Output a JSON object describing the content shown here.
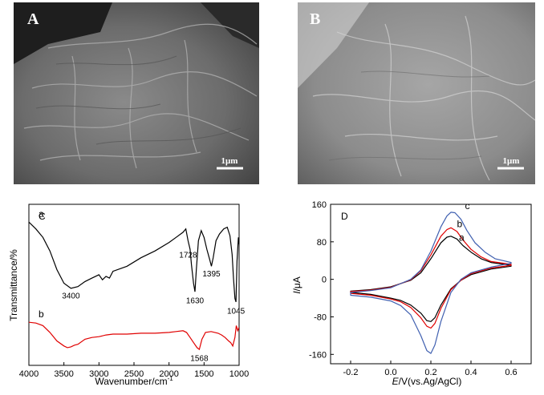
{
  "panels": {
    "A": {
      "label": "A",
      "scale_bar": "1μm"
    },
    "B": {
      "label": "B",
      "scale_bar": "1μm"
    }
  },
  "chart_data": [
    {
      "panel": "C",
      "type": "line",
      "xlabel": "Wavenumber/cm",
      "xlabel_sup": "-1",
      "ylabel": "Transmittance/%",
      "xlim": [
        4000,
        1000
      ],
      "x_ticks": [
        4000,
        3500,
        3000,
        2500,
        2000,
        1500,
        1000
      ],
      "series": [
        {
          "name": "a",
          "color": "#000000",
          "x": [
            4000,
            3900,
            3800,
            3700,
            3600,
            3500,
            3400,
            3300,
            3200,
            3100,
            3000,
            2950,
            2900,
            2850,
            2800,
            2600,
            2400,
            2200,
            2000,
            1900,
            1800,
            1760,
            1728,
            1700,
            1680,
            1650,
            1630,
            1610,
            1580,
            1540,
            1500,
            1460,
            1420,
            1395,
            1370,
            1330,
            1280,
            1220,
            1170,
            1130,
            1100,
            1080,
            1060,
            1045,
            1030,
            1010,
            1000
          ],
          "y": [
            83,
            79,
            74,
            66,
            55,
            47,
            44,
            45,
            48,
            50,
            52,
            49,
            51,
            50,
            54,
            57,
            62,
            66,
            71,
            74,
            77,
            79,
            72,
            67,
            58,
            47,
            42,
            55,
            72,
            78,
            74,
            67,
            61,
            57,
            62,
            72,
            76,
            79,
            80,
            75,
            64,
            50,
            38,
            36,
            60,
            74,
            70
          ]
        },
        {
          "name": "b",
          "color": "#e00000",
          "x": [
            4000,
            3900,
            3800,
            3700,
            3600,
            3500,
            3450,
            3400,
            3350,
            3300,
            3200,
            3100,
            3000,
            2900,
            2800,
            2600,
            2400,
            2200,
            2000,
            1900,
            1800,
            1750,
            1700,
            1650,
            1600,
            1568,
            1530,
            1480,
            1400,
            1300,
            1250,
            1200,
            1150,
            1120,
            1090,
            1060,
            1040,
            1020,
            1000
          ],
          "y": [
            24,
            23.5,
            22,
            18,
            13,
            10,
            9,
            9.5,
            10.5,
            11,
            14,
            15,
            15.5,
            16.5,
            17,
            17,
            17.5,
            17.5,
            18,
            18.5,
            19,
            18,
            15,
            12,
            9,
            8,
            14,
            18,
            18.5,
            17.5,
            16.5,
            15,
            13,
            12,
            10,
            15,
            22,
            19,
            21
          ]
        }
      ],
      "annotations": [
        {
          "text": "3400",
          "x": 3400,
          "y": 40
        },
        {
          "text": "1728",
          "x": 1728,
          "y": 64
        },
        {
          "text": "1395",
          "x": 1395,
          "y": 53
        },
        {
          "text": "1630",
          "x": 1630,
          "y": 37
        },
        {
          "text": "1045",
          "x": 1045,
          "y": 31
        },
        {
          "text": "1568",
          "x": 1568,
          "y": 3
        }
      ],
      "labels": {
        "panel": "C"
      }
    },
    {
      "panel": "D",
      "type": "line",
      "xlabel_italic": "E",
      "xlabel": "/V(vs.Ag/AgCl)",
      "ylabel_italic": "I",
      "ylabel": "/μA",
      "xlim": [
        -0.3,
        0.7
      ],
      "ylim": [
        -180,
        160
      ],
      "x_ticks": [
        -0.2,
        0.0,
        0.2,
        0.4,
        0.6
      ],
      "x_tick_labels": [
        "-0.2",
        "0.0",
        "0.2",
        "0.4",
        "0.6"
      ],
      "y_ticks": [
        160,
        80,
        0,
        -80,
        -160
      ],
      "y_tick_labels": [
        "160",
        "80",
        "0",
        "-80",
        "-160"
      ],
      "series": [
        {
          "name": "a",
          "color": "#000000",
          "x": [
            -0.2,
            -0.1,
            0.0,
            0.1,
            0.15,
            0.2,
            0.25,
            0.28,
            0.3,
            0.33,
            0.36,
            0.4,
            0.45,
            0.5,
            0.6,
            0.6,
            0.5,
            0.4,
            0.35,
            0.3,
            0.25,
            0.22,
            0.2,
            0.18,
            0.15,
            0.1,
            0.05,
            0.0,
            -0.1,
            -0.2
          ],
          "y": [
            -25,
            -22,
            -16,
            -2,
            14,
            44,
            78,
            90,
            92,
            86,
            72,
            58,
            44,
            36,
            30,
            28,
            22,
            10,
            -2,
            -20,
            -55,
            -82,
            -90,
            -88,
            -72,
            -55,
            -45,
            -40,
            -32,
            -28
          ]
        },
        {
          "name": "b",
          "color": "#e00000",
          "x": [
            -0.2,
            -0.1,
            0.0,
            0.1,
            0.15,
            0.2,
            0.25,
            0.28,
            0.3,
            0.33,
            0.36,
            0.4,
            0.45,
            0.5,
            0.6,
            0.6,
            0.5,
            0.4,
            0.35,
            0.3,
            0.25,
            0.22,
            0.2,
            0.18,
            0.15,
            0.1,
            0.05,
            0.0,
            -0.1,
            -0.2
          ],
          "y": [
            -26,
            -23,
            -17,
            -1,
            18,
            52,
            92,
            106,
            110,
            102,
            84,
            64,
            48,
            38,
            32,
            30,
            24,
            12,
            -2,
            -22,
            -62,
            -94,
            -104,
            -100,
            -82,
            -60,
            -48,
            -42,
            -34,
            -30
          ]
        },
        {
          "name": "c",
          "color": "#4060b0",
          "x": [
            -0.2,
            -0.1,
            0.0,
            0.1,
            0.15,
            0.2,
            0.25,
            0.28,
            0.3,
            0.32,
            0.35,
            0.38,
            0.42,
            0.47,
            0.52,
            0.6,
            0.6,
            0.5,
            0.45,
            0.4,
            0.35,
            0.3,
            0.25,
            0.22,
            0.2,
            0.18,
            0.15,
            0.1,
            0.05,
            0.0,
            -0.1,
            -0.2
          ],
          "y": [
            -28,
            -24,
            -18,
            0,
            20,
            60,
            112,
            135,
            143,
            142,
            128,
            104,
            78,
            58,
            44,
            36,
            34,
            26,
            20,
            14,
            0,
            -28,
            -90,
            -140,
            -158,
            -152,
            -120,
            -76,
            -56,
            -46,
            -38,
            -34
          ]
        }
      ],
      "labels": {
        "panel": "D"
      }
    }
  ]
}
